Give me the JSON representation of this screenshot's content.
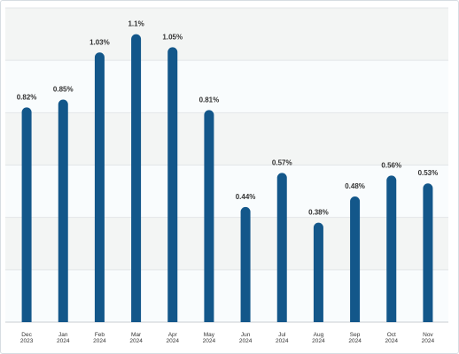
{
  "chart_data": {
    "type": "bar",
    "title": "",
    "xlabel": "",
    "ylabel": "",
    "categories": [
      [
        "Dec",
        "2023"
      ],
      [
        "Jan",
        "2024"
      ],
      [
        "Feb",
        "2024"
      ],
      [
        "Mar",
        "2024"
      ],
      [
        "Apr",
        "2024"
      ],
      [
        "May",
        "2024"
      ],
      [
        "Jun",
        "2024"
      ],
      [
        "Jul",
        "2024"
      ],
      [
        "Aug",
        "2024"
      ],
      [
        "Sep",
        "2024"
      ],
      [
        "Oct",
        "2024"
      ],
      [
        "Nov",
        "2024"
      ]
    ],
    "values": [
      0.82,
      0.85,
      1.03,
      1.1,
      1.05,
      0.81,
      0.44,
      0.57,
      0.38,
      0.48,
      0.56,
      0.53
    ],
    "value_labels": [
      "0.82%",
      "0.85%",
      "1.03%",
      "1.1%",
      "1.05%",
      "0.81%",
      "0.44%",
      "0.57%",
      "0.38%",
      "0.48%",
      "0.56%",
      "0.53%"
    ],
    "ylim": [
      0,
      1.2
    ],
    "y_gridlines": [
      0.2,
      0.4,
      0.6,
      0.8,
      1.0,
      1.2
    ],
    "y_tick_labels_visible": false,
    "grid": true,
    "alternating_bands": true,
    "colors": {
      "bar": "#13578a",
      "band_light": "#f9fcfd",
      "band_dark": "#f3f5f4",
      "gridline": "#e3e6e8",
      "text": "#333333"
    }
  }
}
